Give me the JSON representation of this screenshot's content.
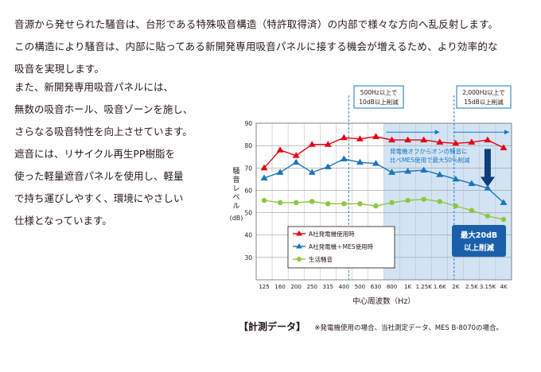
{
  "intro": {
    "line1": "音源から発せられた騒音は、台形である特殊吸音構造（特許取得済）の内部で様々な方向へ乱反射します。",
    "line2": "この構造により騒音は、内部に貼ってある新開発専用吸音パネルに接する機会が増えるため、より効率的な",
    "line3": "吸音を実現します。"
  },
  "body_lines": [
    "また、新開発専用吸音パネルには、",
    "無数の吸音ホール、吸音ゾーンを施し、",
    "さらなる吸音特性を向上させています。",
    "遮音には、リサイクル再生PP樹脂を",
    "使った軽量遮音パネルを使用し、軽量",
    "で持ち運びしやすく、環境にやさしい",
    "仕様となっています。"
  ],
  "chart_data": {
    "type": "line",
    "ylabel": "騒音レベル (dB)",
    "xlabel": "中心周波数（Hz）",
    "categories": [
      "125",
      "160",
      "200",
      "250",
      "315",
      "400",
      "500",
      "630",
      "800",
      "1K",
      "1.25K",
      "1.6K",
      "2K",
      "2.5K",
      "3.15K",
      "4K"
    ],
    "ylim": [
      20,
      90
    ],
    "yticks": [
      30,
      40,
      50,
      60,
      70,
      80,
      90
    ],
    "grid": true,
    "legend_position": "bottom-left",
    "series": [
      {
        "name": "A社発電機使用時",
        "color": "#e60012",
        "marker": "triangle",
        "values": [
          70,
          78,
          75.5,
          80.5,
          80.5,
          83.5,
          83,
          84,
          82.5,
          82.5,
          82.5,
          81.5,
          81,
          81.5,
          82.5,
          79
        ]
      },
      {
        "name": "A社発電機＋MES使用時",
        "color": "#1b75bc",
        "marker": "triangle",
        "values": [
          65.5,
          68,
          72.5,
          68,
          70.5,
          74,
          72.5,
          72,
          68,
          68.5,
          69,
          67,
          65,
          63,
          61,
          54.5
        ]
      },
      {
        "name": "生活騒音",
        "color": "#8dc63f",
        "marker": "circle",
        "values": [
          55.5,
          54.5,
          54.5,
          55,
          54,
          54,
          54,
          53,
          54.5,
          55.5,
          56,
          55,
          53,
          51,
          48.5,
          47
        ]
      }
    ],
    "annotations": {
      "callout_500": [
        "500Hz以上で",
        "10dB以上削減"
      ],
      "callout_2000": [
        "2,000Hz以上で",
        "15dB以上削減"
      ],
      "zone_text": [
        "発電機オフからオンの騒音に",
        "比べMES使用で最大50％削減"
      ],
      "badge": [
        "最大20dB",
        "以上削減"
      ]
    }
  },
  "footnote": {
    "title": "【計測データ】",
    "text": "※発電機使用の場合、当社測定データ、MES B-8070の場合。"
  }
}
